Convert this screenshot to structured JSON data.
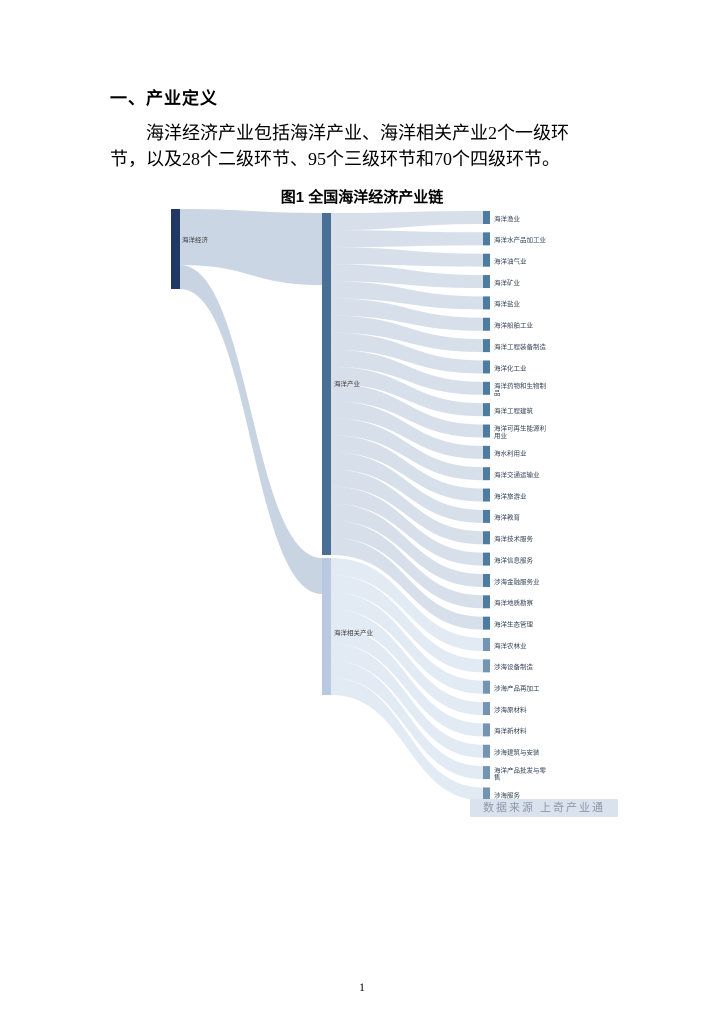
{
  "page": {
    "heading": "一、产业定义",
    "paragraph": "海洋经济产业包括海洋产业、海洋相关产业2个一级环节，以及28个二级环节、95个三级环节和70个四级环节。",
    "figure_title": "图1 全国海洋经济产业链",
    "source_note": "数据来源 上奇产业通",
    "page_number": "1"
  },
  "chart_data": {
    "type": "sankey",
    "title": "图1 全国海洋经济产业链",
    "root": "海洋经济",
    "branches": [
      {
        "name": "海洋产业",
        "children": [
          "海洋渔业",
          "海洋水产品加工业",
          "海洋油气业",
          "海洋矿业",
          "海洋盐业",
          "海洋船舶工业",
          "海洋工程装备制造",
          "海洋化工业",
          "海洋药物和生物制品",
          "海洋工程建筑",
          "海洋可再生能源利用业",
          "海水利用业",
          "海洋交通运输业",
          "海洋旅游业",
          "海洋教育",
          "海洋技术服务",
          "海洋信息服务",
          "涉海金融服务业",
          "海洋地质勘察",
          "海洋生态管理"
        ]
      },
      {
        "name": "海洋相关产业",
        "children": [
          "海洋农林业",
          "涉海设备制造",
          "涉海产品再加工",
          "涉海原材料",
          "海洋新材料",
          "涉海建筑与安装",
          "海洋产品批发与零售",
          "涉海服务"
        ]
      }
    ],
    "colors": {
      "root_node": "#1f3864",
      "branch1_node": "#4a6f94",
      "branch2_node": "#b9c9e2",
      "leaf_node": "#4e7ba0",
      "leaf_node_branch2": "#7495b2",
      "link_root1": "#a9bdd3",
      "link_root2": "#9db1cb",
      "link_branch1": "#b7c5d8",
      "link_branch2": "#dde6f2",
      "label": "#2f3f52"
    },
    "layout": {
      "levels": 3,
      "leaf_count": 28,
      "orientation": "horizontal"
    }
  }
}
